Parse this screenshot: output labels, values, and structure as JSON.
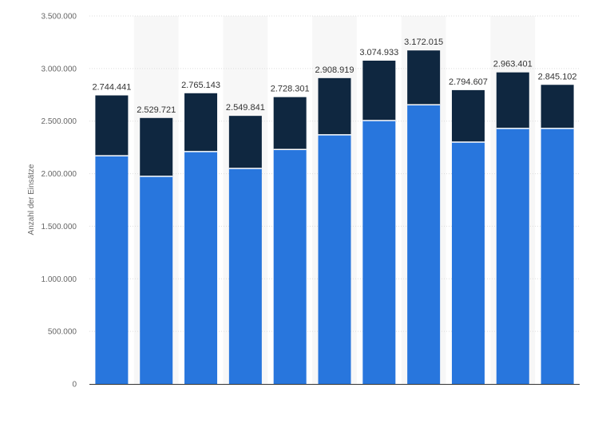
{
  "chart_data": {
    "type": "bar",
    "stacked": true,
    "ylabel": "Anzahl der Einsätze",
    "ylim": [
      0,
      3500000
    ],
    "yticks": [
      0,
      500000,
      1000000,
      1500000,
      2000000,
      2500000,
      3000000,
      3500000
    ],
    "ytick_labels": [
      "0",
      "500.000",
      "1.000.000",
      "1.500.000",
      "2.000.000",
      "2.500.000",
      "3.000.000",
      "3.500.000"
    ],
    "grid": true,
    "colors": {
      "series_lower": "#2876dd",
      "series_upper": "#0f2740"
    },
    "series": [
      {
        "values": [
          2170000,
          1975000,
          2210000,
          2050000,
          2230000,
          2370000,
          2505000,
          2655000,
          2300000,
          2430000,
          2430000
        ]
      },
      {
        "values": [
          574441,
          554721,
          555143,
          499841,
          498301,
          538919,
          569933,
          517015,
          494607,
          533401,
          415102
        ]
      }
    ],
    "totals": [
      2744441,
      2529721,
      2765143,
      2549841,
      2728301,
      2908919,
      3074933,
      3172015,
      2794607,
      2963401,
      2845102
    ],
    "total_labels": [
      "2.744.441",
      "2.529.721",
      "2.765.143",
      "2.549.841",
      "2.728.301",
      "2.908.919",
      "3.074.933",
      "3.172.015",
      "2.794.607",
      "2.963.401",
      "2.845.102"
    ]
  }
}
